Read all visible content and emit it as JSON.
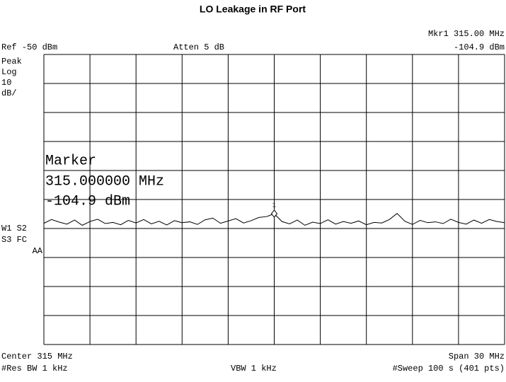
{
  "chart_data": {
    "type": "line",
    "title": "LO Leakage in RF Port",
    "ref_level": "Ref -50 dBm",
    "attenuation": "Atten 5 dB",
    "marker_header": "Mkr1 315.00 MHz",
    "marker_readout": "-104.9 dBm",
    "scale_labels": [
      "Peak",
      "Log",
      "10",
      "dB/"
    ],
    "trace_labels": [
      "W1 S2",
      "S3 FC",
      "AA"
    ],
    "marker_box": [
      "Marker",
      "315.000000 MHz",
      "-104.9 dBm"
    ],
    "center": "Center 315 MHz",
    "span": "Span 30 MHz",
    "res_bw": "#Res BW 1 kHz",
    "vbw": "VBW 1 kHz",
    "sweep": "#Sweep 100 s (401 pts)",
    "marker": {
      "label": "1",
      "x": 315,
      "y": -104.9
    },
    "xlim": [
      300,
      330
    ],
    "ylim": [
      -150,
      -50
    ],
    "xticks": [
      300,
      303,
      306,
      309,
      312,
      315,
      318,
      321,
      324,
      327,
      330
    ],
    "yticks": [
      -150,
      -140,
      -130,
      -120,
      -110,
      -100,
      -90,
      -80,
      -70,
      -60,
      -50
    ],
    "grid": true,
    "color": "#000000",
    "x": [
      300,
      300.5,
      301,
      301.5,
      302,
      302.5,
      303,
      303.5,
      304,
      304.5,
      305,
      305.5,
      306,
      306.5,
      307,
      307.5,
      308,
      308.5,
      309,
      309.5,
      310,
      310.5,
      311,
      311.5,
      312,
      312.5,
      313,
      313.5,
      314,
      314.5,
      315,
      315.5,
      316,
      316.5,
      317,
      317.5,
      318,
      318.5,
      319,
      319.5,
      320,
      320.5,
      321,
      321.5,
      322,
      322.5,
      323,
      323.5,
      324,
      324.5,
      325,
      325.5,
      326,
      326.5,
      327,
      327.5,
      328,
      328.5,
      329,
      329.5,
      330
    ],
    "values": [
      -108.2,
      -106.9,
      -107.8,
      -108.5,
      -107.1,
      -108.9,
      -107.6,
      -106.8,
      -108.3,
      -107.9,
      -108.7,
      -107.2,
      -108.1,
      -106.9,
      -108.4,
      -107.5,
      -108.8,
      -107.3,
      -108.0,
      -107.7,
      -108.6,
      -107.0,
      -106.4,
      -108.2,
      -107.4,
      -106.6,
      -108.1,
      -107.3,
      -106.2,
      -105.9,
      -104.9,
      -107.6,
      -108.4,
      -107.1,
      -108.9,
      -107.8,
      -108.3,
      -107.0,
      -108.5,
      -107.6,
      -108.2,
      -107.4,
      -108.7,
      -107.9,
      -108.1,
      -106.9,
      -104.8,
      -107.5,
      -108.6,
      -107.2,
      -108.0,
      -107.7,
      -108.3,
      -106.8,
      -107.9,
      -108.5,
      -107.1,
      -108.2,
      -106.9,
      -107.6,
      -108.0
    ]
  }
}
